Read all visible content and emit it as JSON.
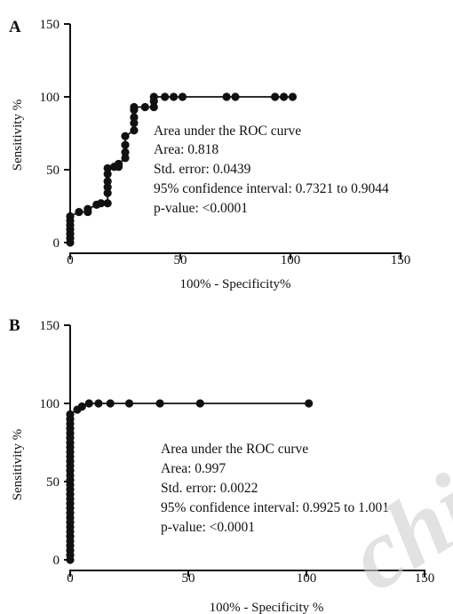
{
  "chart_data": [
    {
      "panel": "A",
      "type": "line",
      "xlabel": "100% - Specificity%",
      "ylabel": "Sensitivity %",
      "xlim": [
        0,
        150
      ],
      "ylim": [
        0,
        150
      ],
      "xticks": [
        "0",
        "50",
        "100",
        "150"
      ],
      "yticks": [
        "0",
        "50",
        "100",
        "150"
      ],
      "grid": false,
      "annotations": [
        "Area under the ROC curve",
        "Area: 0.818",
        "Std. error: 0.0439",
        "95% confidence interval: 0.7321 to 0.9044",
        "p-value: <0.0001"
      ],
      "points": [
        [
          0,
          0
        ],
        [
          0,
          3
        ],
        [
          0,
          6
        ],
        [
          0,
          9
        ],
        [
          0,
          12
        ],
        [
          0,
          15
        ],
        [
          0,
          18
        ],
        [
          4,
          21
        ],
        [
          8,
          21
        ],
        [
          8,
          23
        ],
        [
          12,
          26
        ],
        [
          14,
          27
        ],
        [
          17,
          27
        ],
        [
          17,
          34
        ],
        [
          17,
          38
        ],
        [
          17,
          42
        ],
        [
          17,
          47
        ],
        [
          17,
          51
        ],
        [
          20,
          52
        ],
        [
          22,
          52
        ],
        [
          22,
          54
        ],
        [
          25,
          58
        ],
        [
          25,
          62
        ],
        [
          25,
          67
        ],
        [
          25,
          73
        ],
        [
          29,
          77
        ],
        [
          29,
          82
        ],
        [
          29,
          86
        ],
        [
          29,
          91
        ],
        [
          29,
          93
        ],
        [
          34,
          93
        ],
        [
          38,
          93
        ],
        [
          38,
          97
        ],
        [
          38,
          100
        ],
        [
          43,
          100
        ],
        [
          47,
          100
        ],
        [
          51,
          100
        ],
        [
          71,
          100
        ],
        [
          75,
          100
        ],
        [
          93,
          100
        ],
        [
          97,
          100
        ],
        [
          101,
          100
        ]
      ]
    },
    {
      "panel": "B",
      "type": "line",
      "xlabel": "100% - Specificity %",
      "ylabel": "Sensitivity %",
      "xlim": [
        0,
        150
      ],
      "ylim": [
        0,
        150
      ],
      "xticks": [
        "0",
        "50",
        "100",
        "150"
      ],
      "yticks": [
        "0",
        "50",
        "100",
        "150"
      ],
      "grid": false,
      "annotations": [
        "Area under the ROC curve",
        "Area: 0.997",
        "Std. error: 0.0022",
        "95% confidence interval: 0.9925 to 1.001",
        "p-value: <0.0001"
      ],
      "points": [
        [
          0,
          0
        ],
        [
          0,
          3
        ],
        [
          0,
          6
        ],
        [
          0,
          9
        ],
        [
          0,
          12
        ],
        [
          0,
          15
        ],
        [
          0,
          18
        ],
        [
          0,
          21
        ],
        [
          0,
          24
        ],
        [
          0,
          27
        ],
        [
          0,
          30
        ],
        [
          0,
          33
        ],
        [
          0,
          36
        ],
        [
          0,
          39
        ],
        [
          0,
          42
        ],
        [
          0,
          45
        ],
        [
          0,
          48
        ],
        [
          0,
          51
        ],
        [
          0,
          54
        ],
        [
          0,
          57
        ],
        [
          0,
          60
        ],
        [
          0,
          63
        ],
        [
          0,
          66
        ],
        [
          0,
          69
        ],
        [
          0,
          72
        ],
        [
          0,
          75
        ],
        [
          0,
          78
        ],
        [
          0,
          81
        ],
        [
          0,
          84
        ],
        [
          0,
          87
        ],
        [
          0,
          90
        ],
        [
          0,
          93
        ],
        [
          3,
          96
        ],
        [
          5,
          98
        ],
        [
          8,
          100
        ],
        [
          12,
          100
        ],
        [
          17,
          100
        ],
        [
          25,
          100
        ],
        [
          38,
          100
        ],
        [
          55,
          100
        ],
        [
          101,
          100
        ]
      ]
    }
  ],
  "watermark": "chi"
}
